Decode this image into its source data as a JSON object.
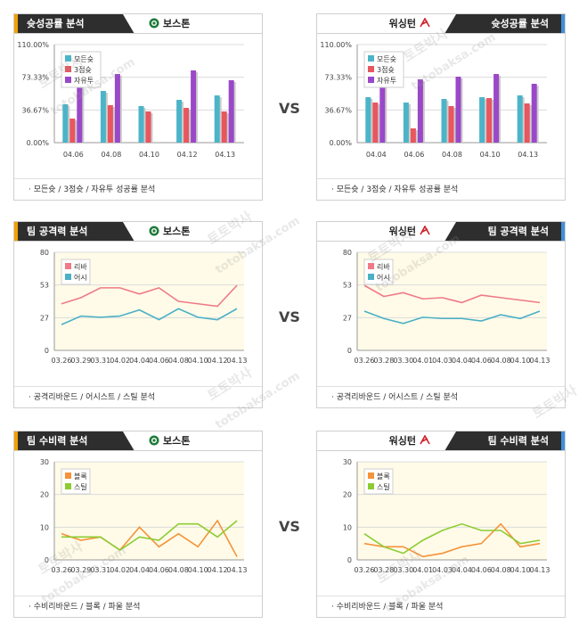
{
  "vs_label": "VS",
  "watermark": {
    "line1": "토토박사",
    "line2": "totobaksa.com"
  },
  "panels": [
    {
      "id": "shoot-boston",
      "title": "슛성공률 분석",
      "team": "보스톤",
      "side": "left",
      "footer": "모든슛 / 3점슛 / 자유투 성공률 분석"
    },
    {
      "id": "shoot-washington",
      "title": "슛성공률 분석",
      "team": "워싱턴",
      "side": "right",
      "footer": "모든슛 / 3점슛 / 자유투 성공률 분석"
    },
    {
      "id": "attack-boston",
      "title": "팀 공격력 분석",
      "team": "보스톤",
      "side": "left",
      "footer": "공격리바운드 / 어시스트 / 스틸 분석"
    },
    {
      "id": "attack-washington",
      "title": "팀 공격력 분석",
      "team": "워싱턴",
      "side": "right",
      "footer": "공격리바운드 / 어시스트 / 스틸 분석"
    },
    {
      "id": "defense-boston",
      "title": "팀 수비력 분석",
      "team": "보스톤",
      "side": "left",
      "footer": "수비리바운드 / 블록 / 파울 분석"
    },
    {
      "id": "defense-washington",
      "title": "팀 수비력 분석",
      "team": "워싱턴",
      "side": "right",
      "footer": "수비리바운드 / 블록 / 파울 분석"
    }
  ],
  "colors": {
    "allshot": "#4cb4c8",
    "three": "#e8565e",
    "ft": "#9a48c8",
    "reb": "#f07a86",
    "ast": "#4ab0c6",
    "blk": "#f5923a",
    "stl": "#8ccc32",
    "plot_bg": "#fffbe8",
    "boston_logo": "#1e7a3a",
    "washington_logo": "#d0202a"
  },
  "chart_data": [
    {
      "type": "bar",
      "categories": [
        "04.06",
        "04.08",
        "04.10",
        "04.12",
        "04.13"
      ],
      "yticks": [
        "0.00%",
        "36.67%",
        "73.33%",
        "110.00%"
      ],
      "ylim": [
        0,
        110
      ],
      "legend": "top-left",
      "series": [
        {
          "name": "모든슛",
          "color_key": "allshot",
          "values": [
            43,
            58,
            41,
            48,
            53
          ]
        },
        {
          "name": "3점슛",
          "color_key": "three",
          "values": [
            27,
            42,
            35,
            39,
            35
          ]
        },
        {
          "name": "자유투",
          "color_key": "ft",
          "values": [
            64,
            77,
            0,
            81,
            70
          ]
        }
      ]
    },
    {
      "type": "bar",
      "categories": [
        "04.04",
        "04.06",
        "04.08",
        "04.10",
        "04.13"
      ],
      "yticks": [
        "0.00%",
        "36.67%",
        "73.33%",
        "110.00%"
      ],
      "ylim": [
        0,
        110
      ],
      "legend": "top-left",
      "series": [
        {
          "name": "모든슛",
          "color_key": "allshot",
          "values": [
            51,
            45,
            49,
            51,
            53
          ]
        },
        {
          "name": "3점슛",
          "color_key": "three",
          "values": [
            45,
            16,
            41,
            50,
            44
          ]
        },
        {
          "name": "자유투",
          "color_key": "ft",
          "values": [
            67,
            71,
            74,
            77,
            66
          ]
        }
      ]
    },
    {
      "type": "line",
      "x": [
        "03.26",
        "03.29",
        "03.31",
        "04.02",
        "04.04",
        "04.06",
        "04.08",
        "04.10",
        "04.12",
        "04.13"
      ],
      "yticks": [
        "0",
        "27",
        "53",
        "80"
      ],
      "ylim": [
        0,
        80
      ],
      "legend": "top-left",
      "series": [
        {
          "name": "리바",
          "color_key": "reb",
          "values": [
            38,
            43,
            51,
            51,
            46,
            51,
            40,
            38,
            36,
            53
          ]
        },
        {
          "name": "어시",
          "color_key": "ast",
          "values": [
            21,
            28,
            27,
            28,
            33,
            25,
            34,
            27,
            25,
            34
          ]
        }
      ]
    },
    {
      "type": "line",
      "x": [
        "03.26",
        "03.28",
        "03.30",
        "04.01",
        "04.03",
        "04.04",
        "04.06",
        "04.08",
        "04.10",
        "04.13"
      ],
      "yticks": [
        "0",
        "27",
        "53",
        "80"
      ],
      "ylim": [
        0,
        80
      ],
      "legend": "top-left",
      "series": [
        {
          "name": "리바",
          "color_key": "reb",
          "values": [
            53,
            44,
            47,
            42,
            43,
            39,
            45,
            43,
            41,
            39
          ]
        },
        {
          "name": "어시",
          "color_key": "ast",
          "values": [
            32,
            26,
            22,
            27,
            26,
            26,
            24,
            29,
            26,
            32
          ]
        }
      ]
    },
    {
      "type": "line",
      "x": [
        "03.26",
        "03.29",
        "03.31",
        "04.02",
        "04.04",
        "04.06",
        "04.08",
        "04.10",
        "04.12",
        "04.13"
      ],
      "yticks": [
        "0",
        "10",
        "20",
        "30"
      ],
      "ylim": [
        0,
        30
      ],
      "legend": "top-left",
      "series": [
        {
          "name": "블록",
          "color_key": "blk",
          "values": [
            8,
            6,
            7,
            3,
            10,
            4,
            8,
            4,
            12,
            1
          ]
        },
        {
          "name": "스틸",
          "color_key": "stl",
          "values": [
            7,
            7,
            7,
            3,
            7,
            6,
            11,
            11,
            7,
            12
          ]
        }
      ]
    },
    {
      "type": "line",
      "x": [
        "03.26",
        "03.28",
        "03.30",
        "04.01",
        "04.03",
        "04.04",
        "04.06",
        "04.08",
        "04.10",
        "04.13"
      ],
      "yticks": [
        "0",
        "10",
        "20",
        "30"
      ],
      "ylim": [
        0,
        30
      ],
      "legend": "top-left",
      "series": [
        {
          "name": "블록",
          "color_key": "blk",
          "values": [
            5,
            4,
            4,
            1,
            2,
            4,
            5,
            11,
            4,
            5
          ]
        },
        {
          "name": "스틸",
          "color_key": "stl",
          "values": [
            8,
            4,
            2,
            6,
            9,
            11,
            9,
            9,
            5,
            6
          ]
        }
      ]
    }
  ]
}
